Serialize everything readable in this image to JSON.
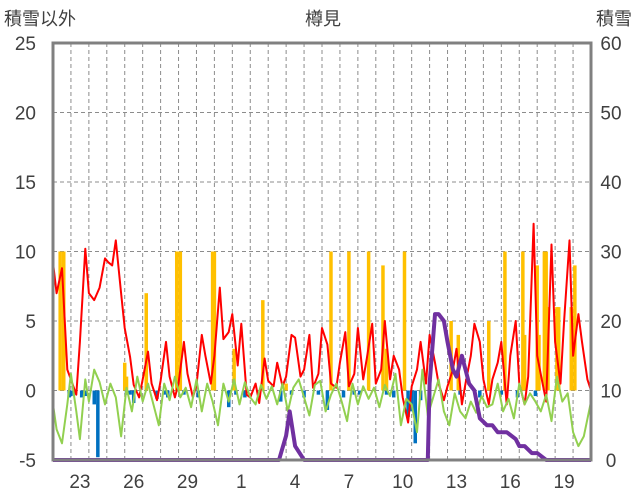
{
  "chart_data": {
    "type": "bar",
    "title": "樽見",
    "ylabel_left": "積雪以外",
    "ylabel_right": "積雪",
    "left_axis": {
      "min": -5,
      "max": 25,
      "ticks": [
        25,
        20,
        15,
        10,
        5,
        0,
        -5
      ]
    },
    "right_axis": {
      "min": 0,
      "max": 60,
      "ticks": [
        60,
        50,
        40,
        30,
        20,
        10,
        0
      ]
    },
    "x_range": [
      21,
      51
    ],
    "x_tick_labels": [
      "23",
      "26",
      "29",
      "1",
      "4",
      "7",
      "10",
      "13",
      "16",
      "19"
    ],
    "x_tick_positions": [
      22.5,
      25.5,
      28.5,
      31.5,
      34.5,
      37.5,
      40.5,
      43.5,
      46.5,
      49.5
    ],
    "grid": {
      "horizontal": "dashed",
      "vertical_days": "dashed"
    },
    "series": [
      {
        "kind": "bar",
        "color": "#FFC000",
        "axis": "left",
        "x": [
          21.4,
          21.6,
          25.0,
          25.1,
          26.2,
          27.9,
          28.1,
          29.9,
          30.0,
          31.1,
          32.7,
          34.0,
          36.5,
          37.5,
          38.6,
          39.4,
          39.6,
          40.6,
          43.2,
          43.6,
          45.3,
          46.2,
          47.2,
          47.3,
          48.0,
          48.1,
          48.4,
          48.5,
          48.6,
          49.1,
          49.2,
          49.9,
          50.1
        ],
        "values": [
          10,
          10,
          2,
          1,
          7,
          10,
          10,
          10,
          10,
          3,
          6.5,
          0.5,
          10,
          10,
          10,
          9,
          3,
          10,
          5,
          4,
          5,
          10,
          10,
          4,
          9,
          4,
          10,
          10,
          6,
          6,
          6,
          6,
          9
        ]
      },
      {
        "kind": "bar",
        "color": "#0070C0",
        "axis": "left",
        "x": [
          21.9,
          22.0,
          22.2,
          22.6,
          22.8,
          23.3,
          23.5,
          25.1,
          25.3,
          25.5,
          26.8,
          27.2,
          27.4,
          28.3,
          29.1,
          30.8,
          31.2,
          31.7,
          33.7,
          34.3,
          35.0,
          35.8,
          36.3,
          37.2,
          37.8,
          38.1,
          39.6,
          40.0,
          40.8,
          41.0,
          41.2,
          41.5,
          42.0,
          43.7,
          44.8,
          46.0,
          46.9,
          47.9
        ],
        "values": [
          -0.5,
          -0.4,
          -0.3,
          -0.5,
          -0.4,
          -1.0,
          -4.8,
          -0.3,
          -0.3,
          -0.9,
          -0.6,
          -0.3,
          -0.5,
          -0.3,
          -0.5,
          -1.2,
          -0.3,
          -0.5,
          -0.8,
          -0.3,
          -0.5,
          -0.3,
          -1.4,
          -0.5,
          -0.3,
          -0.3,
          -0.3,
          -0.5,
          -1.9,
          -1.5,
          -3.8,
          -0.7,
          -1.0,
          -0.3,
          -0.5,
          -0.3,
          -0.5,
          -0.4
        ]
      },
      {
        "kind": "line",
        "color": "#FF0000",
        "axis": "left",
        "x": [
          21.0,
          21.2,
          21.5,
          21.8,
          22.0,
          22.3,
          22.5,
          22.8,
          23.0,
          23.3,
          23.6,
          23.9,
          24.1,
          24.3,
          24.5,
          24.8,
          25.0,
          25.3,
          25.5,
          25.8,
          26.0,
          26.3,
          26.5,
          26.8,
          27.0,
          27.3,
          27.5,
          27.8,
          28.0,
          28.3,
          28.5,
          28.8,
          29.0,
          29.3,
          29.5,
          29.8,
          30.0,
          30.3,
          30.5,
          30.8,
          31.0,
          31.3,
          31.5,
          31.8,
          32.0,
          32.3,
          32.5,
          32.8,
          33.0,
          33.3,
          33.5,
          33.8,
          34.0,
          34.3,
          34.5,
          34.8,
          35.0,
          35.3,
          35.5,
          35.8,
          36.0,
          36.3,
          36.5,
          36.8,
          37.0,
          37.3,
          37.5,
          37.8,
          38.0,
          38.3,
          38.5,
          38.8,
          39.0,
          39.3,
          39.5,
          39.8,
          40.0,
          40.3,
          40.5,
          40.8,
          41.0,
          41.3,
          41.5,
          41.8,
          42.0,
          42.3,
          42.5,
          42.8,
          43.0,
          43.3,
          43.5,
          43.8,
          44.0,
          44.3,
          44.5,
          44.8,
          45.0,
          45.3,
          45.5,
          45.8,
          46.0,
          46.3,
          46.5,
          46.8,
          47.0,
          47.3,
          47.5,
          47.8,
          48.0,
          48.3,
          48.5,
          48.8,
          49.0,
          49.3,
          49.5,
          49.8,
          50.0,
          50.3,
          50.5,
          50.8,
          51.0
        ],
        "values": [
          9.2,
          7.0,
          8.8,
          1.5,
          0.8,
          -0.3,
          3.5,
          10.2,
          7.0,
          6.5,
          7.4,
          9.5,
          9.2,
          9.0,
          10.8,
          7.0,
          4.5,
          2.4,
          0.4,
          -0.5,
          0.8,
          2.8,
          0.5,
          -0.7,
          0.7,
          3.5,
          1.0,
          -0.5,
          0.5,
          3.5,
          1.2,
          -0.5,
          0.4,
          4.0,
          2.5,
          0.5,
          2.5,
          7.4,
          3.7,
          4.2,
          5.5,
          1.8,
          4.8,
          -0.3,
          -0.5,
          0.5,
          -0.9,
          2.3,
          0.7,
          0.3,
          2.0,
          0.3,
          1.0,
          4.0,
          3.8,
          1.0,
          1.5,
          4.0,
          0.2,
          1.2,
          4.5,
          3.3,
          0.5,
          0.2,
          2.0,
          4.2,
          0.3,
          1.2,
          4.5,
          0.8,
          2.3,
          4.8,
          0.5,
          1.5,
          5.0,
          0.8,
          2.5,
          1.5,
          -0.5,
          -2.3,
          0.3,
          1.5,
          3.5,
          0.5,
          4.0,
          2.0,
          0.5,
          -0.7,
          0.3,
          1.5,
          3.0,
          -1.0,
          0.5,
          2.5,
          4.8,
          3.5,
          0.8,
          -1.0,
          0.8,
          2.0,
          3.5,
          -1.0,
          2.5,
          5.0,
          0.5,
          -1.0,
          1.0,
          12.0,
          2.5,
          0.5,
          -0.8,
          10.5,
          3.5,
          0.5,
          5.0,
          10.8,
          2.5,
          5.5,
          3.5,
          0.8,
          0.0
        ]
      },
      {
        "kind": "line",
        "color": "#92D050",
        "axis": "left",
        "x": [
          21.0,
          21.2,
          21.5,
          21.8,
          22.0,
          22.3,
          22.5,
          22.8,
          23.0,
          23.3,
          23.6,
          23.9,
          24.2,
          24.5,
          24.8,
          25.1,
          25.4,
          25.7,
          26.0,
          26.3,
          26.6,
          26.9,
          27.2,
          27.5,
          27.8,
          28.1,
          28.4,
          28.7,
          29.0,
          29.3,
          29.6,
          29.9,
          30.2,
          30.5,
          30.8,
          31.1,
          31.4,
          31.7,
          32.0,
          32.3,
          32.6,
          32.9,
          33.2,
          33.5,
          33.8,
          34.1,
          34.4,
          34.7,
          35.0,
          35.3,
          35.6,
          35.9,
          36.2,
          36.5,
          36.8,
          37.1,
          37.4,
          37.7,
          38.0,
          38.3,
          38.6,
          38.9,
          39.2,
          39.5,
          39.8,
          40.1,
          40.4,
          40.7,
          41.0,
          41.3,
          41.6,
          41.9,
          42.2,
          42.5,
          42.8,
          43.1,
          43.4,
          43.7,
          44.0,
          44.3,
          44.6,
          44.9,
          45.2,
          45.5,
          45.8,
          46.1,
          46.4,
          46.7,
          47.0,
          47.3,
          47.6,
          47.9,
          48.2,
          48.5,
          48.8,
          49.1,
          49.4,
          49.7,
          50.0,
          50.3,
          50.6,
          51.0
        ],
        "values": [
          -1.0,
          -2.8,
          -3.8,
          -1.0,
          1.2,
          -1.5,
          -3.5,
          0.8,
          -0.8,
          1.5,
          0.6,
          -1.0,
          0.5,
          -0.5,
          -3.3,
          0.2,
          -1.5,
          1.0,
          -0.8,
          0.5,
          -1.0,
          -2.5,
          0.5,
          -0.7,
          1.0,
          -0.5,
          0.2,
          -1.2,
          0.8,
          -1.5,
          0.5,
          -0.8,
          -2.5,
          0.5,
          -0.8,
          0.8,
          -1.0,
          0.6,
          -0.5,
          -1.0,
          0.4,
          -0.6,
          0.3,
          -1.0,
          0.5,
          -1.5,
          0.2,
          0.8,
          -0.5,
          -1.8,
          0.4,
          0.7,
          -1.5,
          -0.3,
          0.5,
          -0.8,
          -2.2,
          0.5,
          -1.0,
          0.3,
          -0.6,
          0.2,
          -1.2,
          0.4,
          -0.4,
          1.2,
          -2.5,
          -0.6,
          -1.0,
          -3.0,
          1.5,
          -1.8,
          -0.5,
          0.8,
          -1.5,
          -2.5,
          -0.2,
          -1.5,
          -2.0,
          -0.8,
          -1.6,
          -0.4,
          -1.2,
          -1.0,
          0.5,
          -1.5,
          -0.6,
          -2.0,
          0.5,
          -1.0,
          -0.2,
          -0.8,
          -1.5,
          -0.3,
          -2.2,
          1.0,
          -0.8,
          -0.2,
          -3.0,
          -4.0,
          -3.3,
          -0.8
        ]
      },
      {
        "kind": "line",
        "color": "#7030A0",
        "axis": "right",
        "x": [
          21.0,
          30.0,
          33.6,
          34.0,
          34.2,
          34.5,
          35.0,
          41.9,
          42.0,
          42.3,
          42.4,
          42.5,
          42.8,
          43.0,
          43.3,
          43.5,
          43.8,
          44.0,
          44.2,
          44.5,
          44.8,
          45.2,
          45.5,
          45.8,
          46.0,
          46.3,
          46.8,
          47.0,
          47.3,
          47.7,
          48.0,
          48.5,
          51.0
        ],
        "values": [
          0,
          0,
          0,
          3.5,
          7.0,
          2.0,
          0,
          0,
          11.0,
          21.0,
          21.0,
          21.0,
          20.0,
          17.0,
          13.0,
          12.0,
          15.0,
          13.0,
          11.0,
          10.0,
          6.0,
          5.0,
          5.0,
          4.0,
          4.0,
          4.0,
          3.0,
          2.0,
          2.0,
          1.0,
          1.0,
          0,
          0
        ]
      }
    ]
  }
}
